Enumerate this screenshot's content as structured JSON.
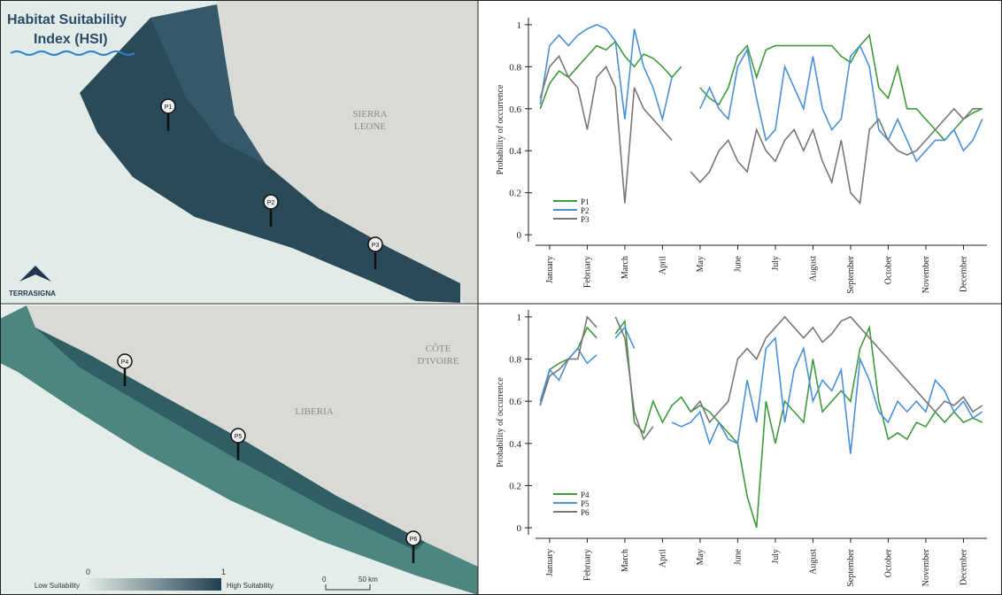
{
  "maps": {
    "title": [
      "Habitat Suitability",
      "Index (HSI)"
    ],
    "countries": {
      "sierra_leone": [
        "SIERRA",
        "LEONE"
      ],
      "liberia": "LIBERIA",
      "cote_divoire": [
        "CÔTE",
        "D'IVOIRE"
      ]
    },
    "logo": "TERRASIGNA",
    "pins": [
      "P1",
      "P2",
      "P3",
      "P4",
      "P5",
      "P6"
    ],
    "legend": {
      "low": "Low Suitability",
      "high": "High Suitability",
      "min": 0,
      "max": 1
    },
    "scale": {
      "zero": 0,
      "distance": "50 km"
    }
  },
  "chart_data": [
    {
      "type": "line",
      "ylabel": "Probability of occurrence",
      "ylim": [
        -0.05,
        1.05
      ],
      "yticks": [
        0,
        0.2,
        0.4,
        0.6,
        0.8,
        1
      ],
      "categories": [
        null,
        "January",
        null,
        null,
        null,
        "February",
        null,
        null,
        null,
        "March",
        null,
        null,
        null,
        "April",
        null,
        null,
        null,
        "May",
        null,
        null,
        null,
        "June",
        null,
        null,
        null,
        "July",
        null,
        null,
        null,
        "August",
        null,
        null,
        null,
        "September",
        null,
        null,
        null,
        "October",
        null,
        null,
        null,
        "November",
        null,
        null,
        null,
        "December",
        null,
        null
      ],
      "series": [
        {
          "name": "P1",
          "color": "#3f9a3c",
          "values": [
            0.6,
            0.72,
            0.78,
            0.75,
            0.8,
            0.85,
            0.9,
            0.88,
            0.92,
            0.85,
            0.8,
            0.86,
            0.84,
            0.8,
            0.75,
            0.8,
            null,
            0.7,
            0.65,
            0.62,
            0.7,
            0.85,
            0.9,
            0.75,
            0.88,
            0.9,
            0.9,
            0.9,
            0.9,
            0.9,
            0.9,
            0.9,
            0.85,
            0.82,
            0.9,
            0.95,
            0.7,
            0.65,
            0.8,
            0.6,
            0.6,
            0.55,
            0.5,
            0.45,
            0.5,
            0.55,
            0.58,
            0.6
          ]
        },
        {
          "name": "P2",
          "color": "#4a90d9",
          "values": [
            0.62,
            0.9,
            0.95,
            0.9,
            0.95,
            0.98,
            1.0,
            0.98,
            0.92,
            0.55,
            0.98,
            0.8,
            0.7,
            0.55,
            0.75,
            null,
            null,
            0.6,
            0.7,
            0.6,
            0.55,
            0.8,
            0.88,
            0.65,
            0.45,
            0.5,
            0.8,
            0.7,
            0.6,
            0.85,
            0.6,
            0.5,
            0.55,
            0.85,
            0.9,
            0.8,
            0.5,
            0.45,
            0.55,
            0.45,
            0.35,
            0.4,
            0.45,
            0.45,
            0.5,
            0.4,
            0.45,
            0.55
          ]
        },
        {
          "name": "P3",
          "color": "#777777",
          "values": [
            0.65,
            0.8,
            0.85,
            0.75,
            0.7,
            0.5,
            0.75,
            0.8,
            0.7,
            0.15,
            0.7,
            0.6,
            0.55,
            0.5,
            0.45,
            null,
            0.3,
            0.25,
            0.3,
            0.4,
            0.45,
            0.35,
            0.3,
            0.5,
            0.4,
            0.35,
            0.45,
            0.5,
            0.4,
            0.5,
            0.35,
            0.25,
            0.45,
            0.2,
            0.15,
            0.5,
            0.55,
            0.45,
            0.4,
            0.38,
            0.4,
            0.45,
            0.5,
            0.55,
            0.6,
            0.55,
            0.6,
            0.6
          ]
        }
      ]
    },
    {
      "type": "line",
      "ylabel": "Probability of occurrence",
      "ylim": [
        -0.05,
        1.05
      ],
      "yticks": [
        0,
        0.2,
        0.4,
        0.6,
        0.8,
        1
      ],
      "categories": [
        null,
        "January",
        null,
        null,
        null,
        "February",
        null,
        null,
        null,
        "March",
        null,
        null,
        null,
        "April",
        null,
        null,
        null,
        "May",
        null,
        null,
        null,
        "June",
        null,
        null,
        null,
        "July",
        null,
        null,
        null,
        "August",
        null,
        null,
        null,
        "September",
        null,
        null,
        null,
        "October",
        null,
        null,
        null,
        "November",
        null,
        null,
        null,
        "December",
        null,
        null
      ],
      "series": [
        {
          "name": "P4",
          "color": "#3f9a3c",
          "values": [
            0.58,
            0.75,
            0.78,
            0.8,
            0.85,
            0.95,
            0.9,
            null,
            0.92,
            0.98,
            0.5,
            0.45,
            0.6,
            0.5,
            0.58,
            0.62,
            0.55,
            0.58,
            0.55,
            0.5,
            0.45,
            0.4,
            0.15,
            0.0,
            0.6,
            0.4,
            0.6,
            0.55,
            0.5,
            0.8,
            0.55,
            0.6,
            0.65,
            0.6,
            0.85,
            0.95,
            0.6,
            0.42,
            0.45,
            0.42,
            0.5,
            0.48,
            0.55,
            0.5,
            0.55,
            0.5,
            0.52,
            0.5
          ]
        },
        {
          "name": "P5",
          "color": "#4a90d9",
          "values": [
            0.6,
            0.75,
            0.7,
            0.8,
            0.85,
            0.78,
            0.82,
            null,
            0.9,
            0.95,
            0.85,
            null,
            null,
            null,
            0.5,
            0.48,
            0.5,
            0.55,
            0.4,
            0.5,
            0.42,
            0.4,
            0.7,
            0.5,
            0.85,
            0.9,
            0.5,
            0.75,
            0.85,
            0.6,
            0.7,
            0.65,
            0.75,
            0.35,
            0.8,
            0.7,
            0.55,
            0.5,
            0.6,
            0.55,
            0.6,
            0.55,
            0.7,
            0.65,
            0.55,
            0.6,
            0.52,
            0.55
          ]
        },
        {
          "name": "P6",
          "color": "#777777",
          "values": [
            0.58,
            0.72,
            0.75,
            0.8,
            0.8,
            1.0,
            0.95,
            null,
            1.0,
            0.9,
            0.55,
            0.42,
            0.48,
            null,
            null,
            null,
            0.55,
            0.6,
            0.5,
            0.55,
            0.6,
            0.8,
            0.85,
            0.8,
            0.9,
            0.95,
            1.0,
            0.95,
            0.9,
            0.95,
            0.88,
            0.92,
            0.98,
            1.0,
            0.95,
            0.9,
            0.85,
            0.8,
            0.75,
            0.7,
            0.65,
            0.6,
            0.55,
            0.6,
            0.58,
            0.62,
            0.55,
            0.58
          ]
        }
      ]
    }
  ]
}
